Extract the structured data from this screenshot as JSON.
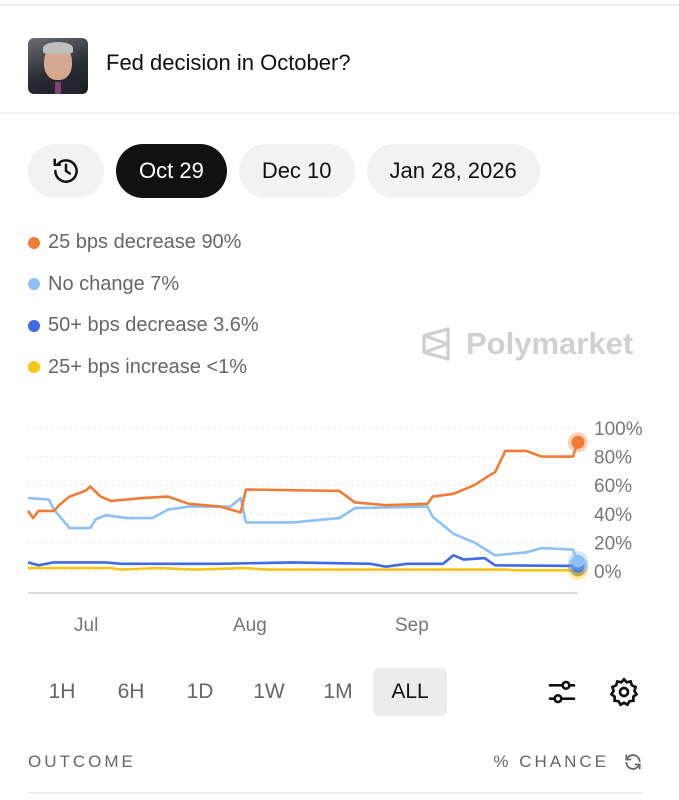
{
  "market": {
    "title": "Fed decision in October?"
  },
  "date_tabs": [
    {
      "label": "Oct 29",
      "active": true
    },
    {
      "label": "Dec 10",
      "active": false
    },
    {
      "label": "Jan 28, 2026",
      "active": false
    }
  ],
  "legend": [
    {
      "label": "25 bps decrease 90%",
      "color": "#f07b35"
    },
    {
      "label": "No change 7%",
      "color": "#8dc0f3"
    },
    {
      "label": "50+ bps decrease 3.6%",
      "color": "#3e6ae6"
    },
    {
      "label": "25+ bps increase <1%",
      "color": "#f5c518"
    }
  ],
  "brand": "Polymarket",
  "chart_data": {
    "type": "line",
    "x_ticks": [
      {
        "label": "Jul",
        "date": "2025-07-01"
      },
      {
        "label": "Aug",
        "date": "2025-08-01"
      },
      {
        "label": "Sep",
        "date": "2025-09-01"
      }
    ],
    "y_ticks": [
      "100%",
      "80%",
      "60%",
      "40%",
      "20%",
      "0%"
    ],
    "ylim": [
      0,
      100
    ],
    "xlim": [
      "2025-06-20",
      "2025-10-04"
    ],
    "grid": true,
    "series": [
      {
        "name": "25 bps decrease",
        "color": "#f07b35",
        "points": [
          [
            "2025-06-20",
            42
          ],
          [
            "2025-06-21",
            37
          ],
          [
            "2025-06-22",
            42
          ],
          [
            "2025-06-25",
            42
          ],
          [
            "2025-06-26",
            46
          ],
          [
            "2025-06-28",
            52
          ],
          [
            "2025-07-01",
            56
          ],
          [
            "2025-07-02",
            59
          ],
          [
            "2025-07-04",
            52
          ],
          [
            "2025-07-06",
            49
          ],
          [
            "2025-07-09",
            50
          ],
          [
            "2025-07-12",
            51
          ],
          [
            "2025-07-17",
            52
          ],
          [
            "2025-07-21",
            47
          ],
          [
            "2025-07-27",
            45
          ],
          [
            "2025-07-31",
            41
          ],
          [
            "2025-08-01",
            57
          ],
          [
            "2025-08-19",
            56
          ],
          [
            "2025-08-22",
            48
          ],
          [
            "2025-08-28",
            46
          ],
          [
            "2025-09-05",
            47
          ],
          [
            "2025-09-06",
            52
          ],
          [
            "2025-09-10",
            54
          ],
          [
            "2025-09-14",
            60
          ],
          [
            "2025-09-17",
            67
          ],
          [
            "2025-09-18",
            69
          ],
          [
            "2025-09-20",
            84
          ],
          [
            "2025-09-24",
            84
          ],
          [
            "2025-09-27",
            80
          ],
          [
            "2025-10-03",
            80
          ],
          [
            "2025-10-04",
            90
          ]
        ]
      },
      {
        "name": "No change",
        "color": "#8dc0f3",
        "points": [
          [
            "2025-06-20",
            51
          ],
          [
            "2025-06-24",
            50
          ],
          [
            "2025-06-25",
            43
          ],
          [
            "2025-06-28",
            30
          ],
          [
            "2025-07-02",
            30
          ],
          [
            "2025-07-03",
            36
          ],
          [
            "2025-07-05",
            39
          ],
          [
            "2025-07-09",
            37
          ],
          [
            "2025-07-14",
            37
          ],
          [
            "2025-07-17",
            43
          ],
          [
            "2025-07-21",
            45
          ],
          [
            "2025-07-29",
            45
          ],
          [
            "2025-07-31",
            51
          ],
          [
            "2025-08-01",
            34
          ],
          [
            "2025-08-10",
            34
          ],
          [
            "2025-08-19",
            37
          ],
          [
            "2025-08-22",
            44
          ],
          [
            "2025-09-05",
            45
          ],
          [
            "2025-09-06",
            38
          ],
          [
            "2025-09-10",
            26
          ],
          [
            "2025-09-14",
            20
          ],
          [
            "2025-09-18",
            11
          ],
          [
            "2025-09-24",
            13
          ],
          [
            "2025-09-27",
            16
          ],
          [
            "2025-10-03",
            15
          ],
          [
            "2025-10-04",
            7
          ]
        ]
      },
      {
        "name": "50+ bps decrease",
        "color": "#3e6ae6",
        "points": [
          [
            "2025-06-20",
            6
          ],
          [
            "2025-06-22",
            4
          ],
          [
            "2025-06-25",
            6
          ],
          [
            "2025-07-05",
            6
          ],
          [
            "2025-07-08",
            5
          ],
          [
            "2025-07-20",
            5
          ],
          [
            "2025-07-27",
            5
          ],
          [
            "2025-08-10",
            6
          ],
          [
            "2025-08-25",
            5
          ],
          [
            "2025-08-28",
            3
          ],
          [
            "2025-09-01",
            5
          ],
          [
            "2025-09-08",
            5
          ],
          [
            "2025-09-10",
            11
          ],
          [
            "2025-09-12",
            8
          ],
          [
            "2025-09-16",
            9
          ],
          [
            "2025-09-18",
            4
          ],
          [
            "2025-10-04",
            3.6
          ]
        ]
      },
      {
        "name": "25+ bps increase",
        "color": "#f5c518",
        "points": [
          [
            "2025-06-20",
            2
          ],
          [
            "2025-07-06",
            2
          ],
          [
            "2025-07-08",
            1
          ],
          [
            "2025-07-15",
            2
          ],
          [
            "2025-07-22",
            1
          ],
          [
            "2025-08-01",
            2
          ],
          [
            "2025-08-05",
            1
          ],
          [
            "2025-09-20",
            1
          ],
          [
            "2025-09-22",
            0.5
          ],
          [
            "2025-10-04",
            0.5
          ]
        ]
      }
    ]
  },
  "ranges": [
    {
      "label": "1H"
    },
    {
      "label": "6H"
    },
    {
      "label": "1D"
    },
    {
      "label": "1W"
    },
    {
      "label": "1M"
    },
    {
      "label": "ALL",
      "active": true
    }
  ],
  "outcome_header": {
    "outcome": "OUTCOME",
    "chance": "% CHANCE"
  }
}
